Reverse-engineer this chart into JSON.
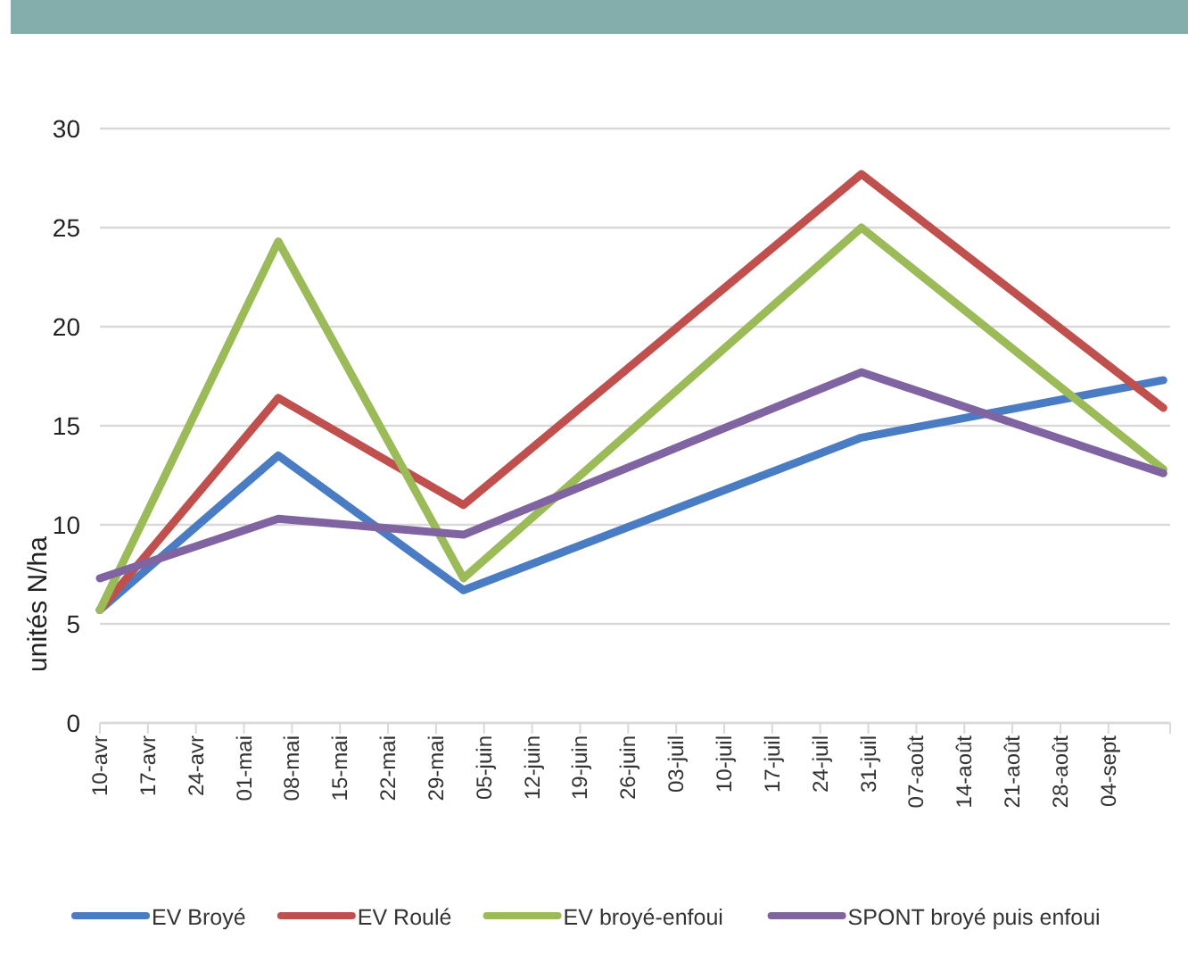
{
  "chart_data": {
    "type": "line",
    "ylabel": "unités N/ha",
    "x": [
      "--04-10",
      "--05-06",
      "--06-02",
      "--07-30",
      "--09-12"
    ],
    "series": [
      {
        "name": "EV Broyé",
        "color": "#4a7cc4",
        "values": [
          5.7,
          13.5,
          6.7,
          14.4,
          17.3
        ]
      },
      {
        "name": "EV Roulé",
        "color": "#c0504d",
        "values": [
          5.7,
          16.4,
          11.0,
          27.7,
          15.9
        ]
      },
      {
        "name": "EV broyé-enfoui",
        "color": "#9bbb59",
        "values": [
          5.7,
          24.3,
          7.3,
          25.0,
          12.8
        ]
      },
      {
        "name": "SPONT broyé puis enfoui",
        "color": "#8064a2",
        "values": [
          7.3,
          10.3,
          9.5,
          17.7,
          12.6
        ]
      }
    ],
    "xlim": [
      "--04-10",
      "--09-13"
    ],
    "xticks": [
      {
        "value": "--04-10",
        "label": "10-avr"
      },
      {
        "value": "--04-17",
        "label": "17-avr"
      },
      {
        "value": "--04-24",
        "label": "24-avr"
      },
      {
        "value": "--05-01",
        "label": "01-mai"
      },
      {
        "value": "--05-08",
        "label": "08-mai"
      },
      {
        "value": "--05-15",
        "label": "15-mai"
      },
      {
        "value": "--05-22",
        "label": "22-mai"
      },
      {
        "value": "--05-29",
        "label": "29-mai"
      },
      {
        "value": "--06-05",
        "label": "05-juin"
      },
      {
        "value": "--06-12",
        "label": "12-juin"
      },
      {
        "value": "--06-19",
        "label": "19-juin"
      },
      {
        "value": "--06-26",
        "label": "26-juin"
      },
      {
        "value": "--07-03",
        "label": "03-juil"
      },
      {
        "value": "--07-10",
        "label": "10-juil"
      },
      {
        "value": "--07-17",
        "label": "17-juil"
      },
      {
        "value": "--07-24",
        "label": "24-juil"
      },
      {
        "value": "--07-31",
        "label": "31-juil"
      },
      {
        "value": "--08-07",
        "label": "07-août"
      },
      {
        "value": "--08-14",
        "label": "14-août"
      },
      {
        "value": "--08-21",
        "label": "21-août"
      },
      {
        "value": "--08-28",
        "label": "28-août"
      },
      {
        "value": "--09-04",
        "label": "04-sept"
      }
    ],
    "ylim": [
      0,
      30
    ],
    "yticks": [
      0,
      5,
      10,
      15,
      20,
      25,
      30
    ],
    "grid": "y",
    "legend": "bottom",
    "marker": "none",
    "line_style": "solid"
  }
}
